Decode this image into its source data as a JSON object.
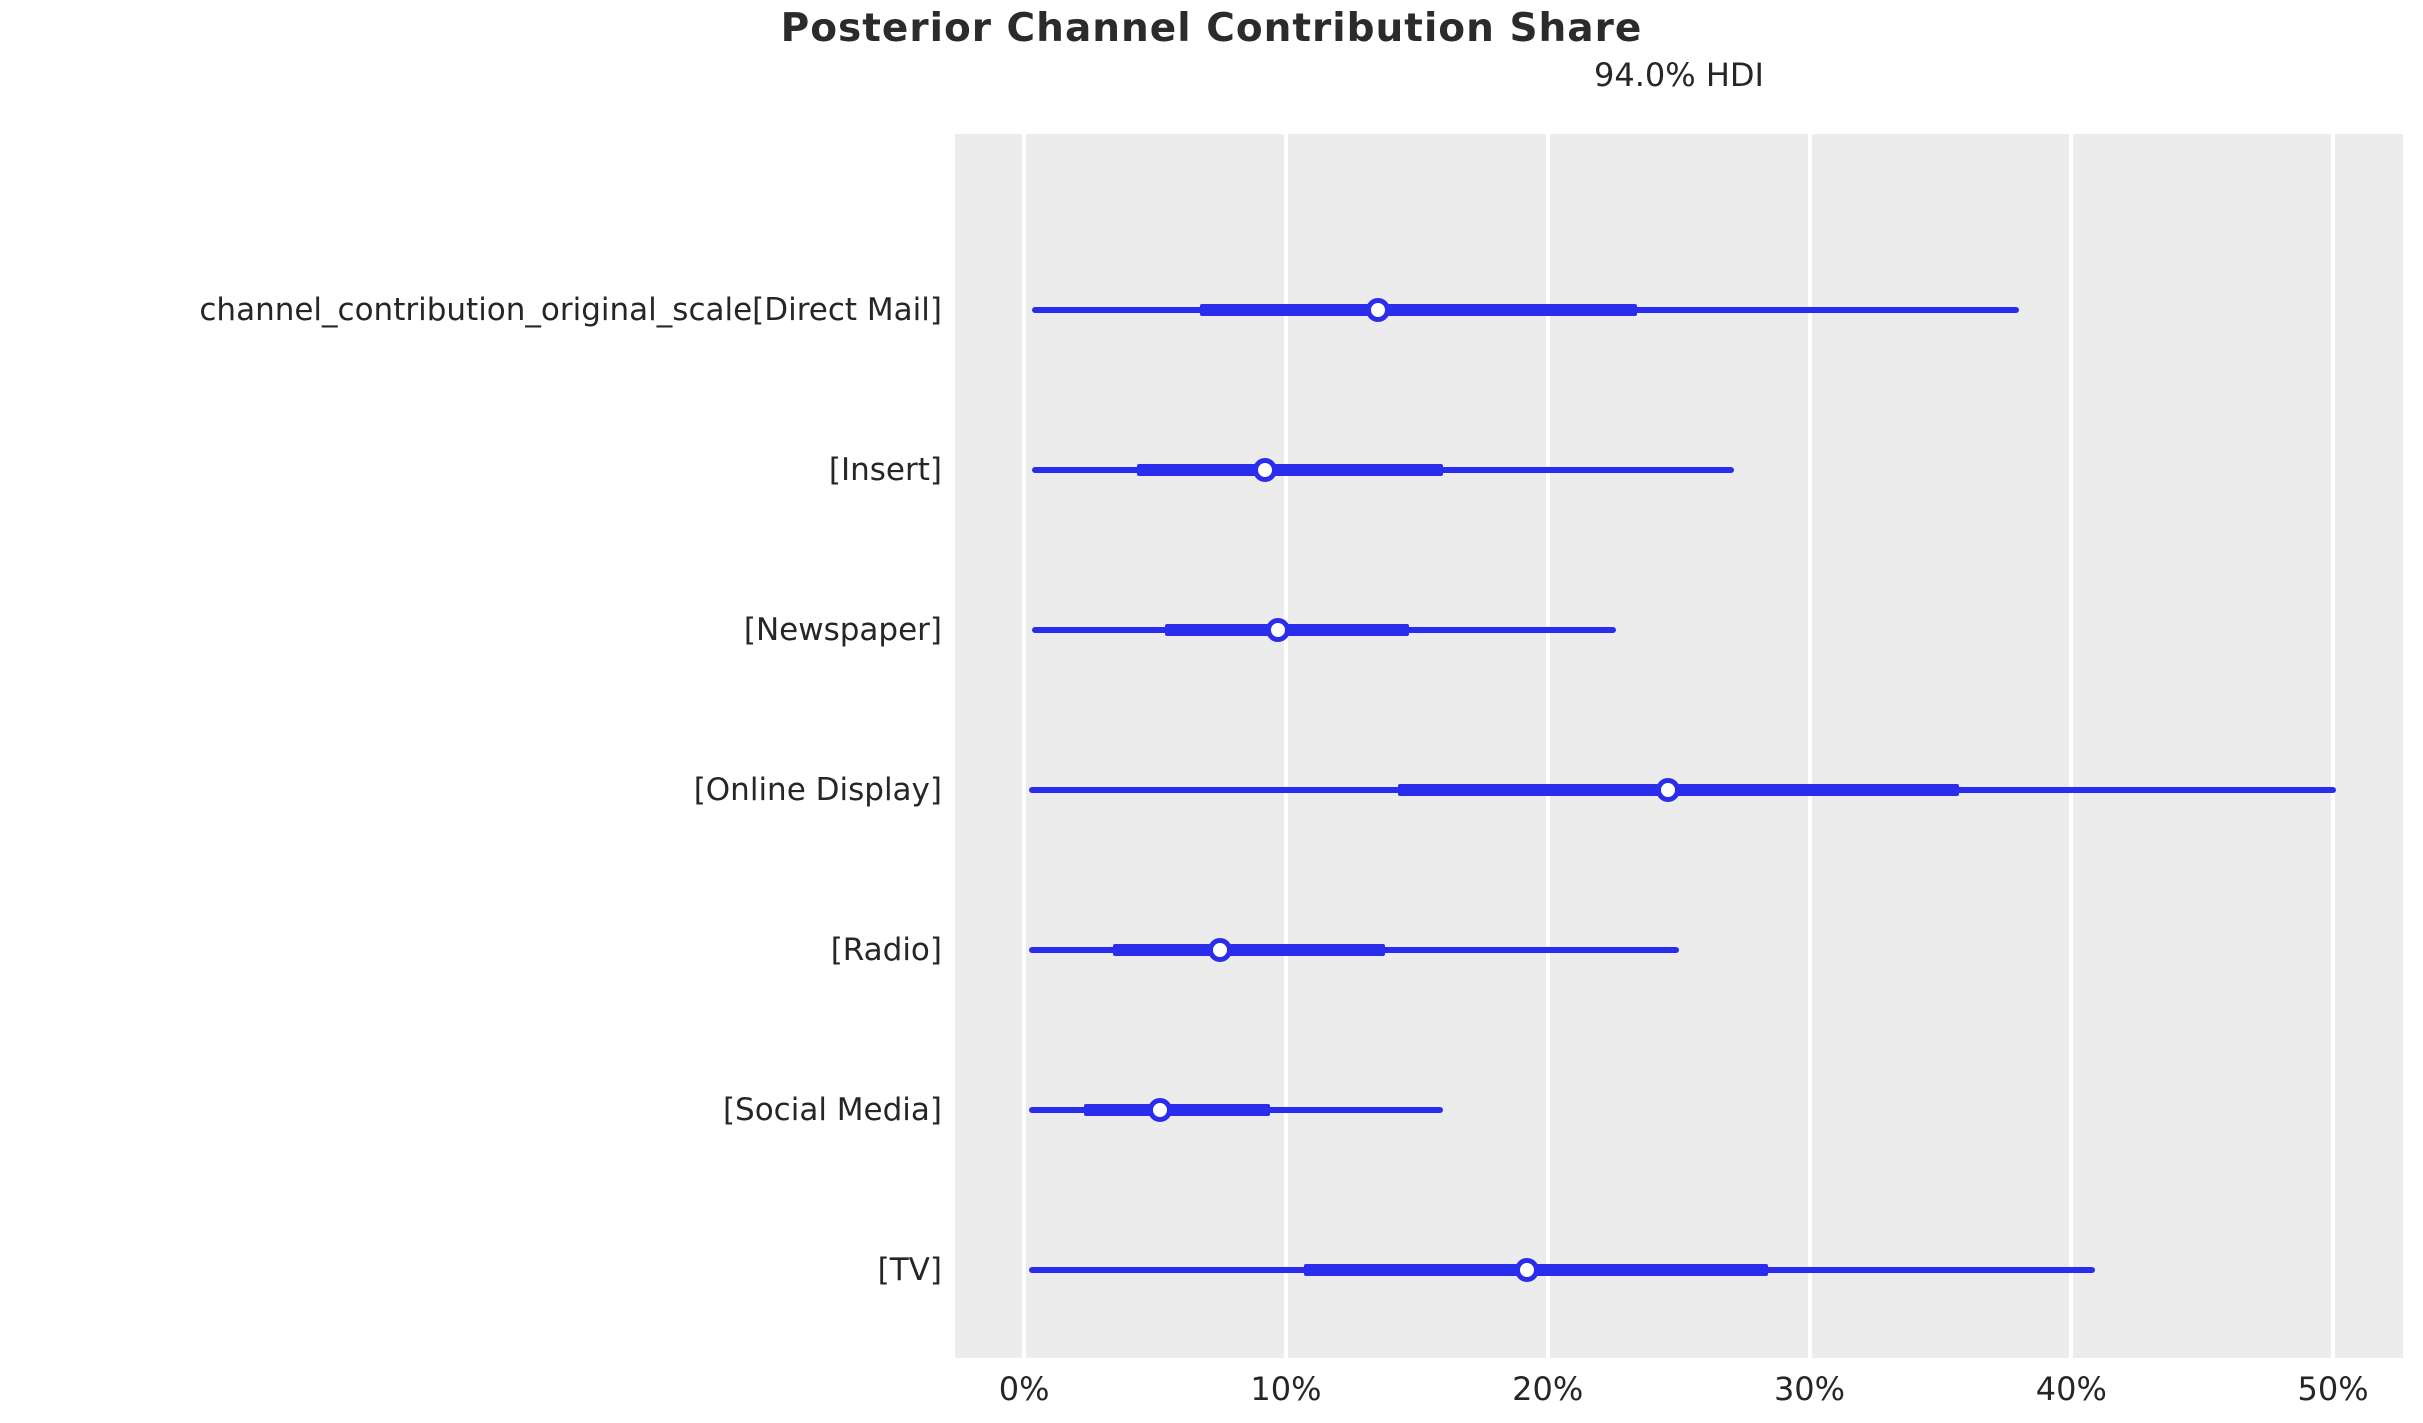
{
  "title": "Posterior Channel Contribution Share",
  "subtitle": "94.0% HDI",
  "colors": {
    "line": "#2a2eec",
    "plot_background": "#ececec",
    "gridline": "#ffffff",
    "text": "#262626",
    "title_text": "#2b2b2b",
    "marker_fill": "#ffffff"
  },
  "chart_data": {
    "type": "forest",
    "title": "Posterior Channel Contribution Share",
    "subtitle": "94.0% HDI",
    "hdi_probability": "94.0%",
    "unit": "percent",
    "x_axis": {
      "tick_labels": [
        "0%",
        "10%",
        "20%",
        "30%",
        "40%",
        "50%"
      ],
      "tick_values": [
        0,
        10,
        20,
        30,
        40,
        50
      ],
      "value_range": [
        -2.64,
        52.67
      ],
      "grid": "on"
    },
    "rows": [
      {
        "label": "channel_contribution_original_scale[Direct Mail]",
        "hdi_low": 0.3,
        "q25": 6.7,
        "median": 13.5,
        "q75": 23.4,
        "hdi_high": 38.0
      },
      {
        "label": "[Insert]",
        "hdi_low": 0.3,
        "q25": 4.3,
        "median": 9.2,
        "q75": 16.0,
        "hdi_high": 27.1
      },
      {
        "label": "[Newspaper]",
        "hdi_low": 0.3,
        "q25": 5.4,
        "median": 9.7,
        "q75": 14.7,
        "hdi_high": 22.6
      },
      {
        "label": "[Online Display]",
        "hdi_low": 0.2,
        "q25": 14.3,
        "median": 24.6,
        "q75": 35.7,
        "hdi_high": 50.1
      },
      {
        "label": "[Radio]",
        "hdi_low": 0.2,
        "q25": 3.4,
        "median": 7.5,
        "q75": 13.8,
        "hdi_high": 25.0
      },
      {
        "label": "[Social Media]",
        "hdi_low": 0.2,
        "q25": 2.3,
        "median": 5.2,
        "q75": 9.4,
        "hdi_high": 16.0
      },
      {
        "label": "[TV]",
        "hdi_low": 0.2,
        "q25": 10.7,
        "median": 19.2,
        "q75": 28.4,
        "hdi_high": 40.9
      }
    ]
  }
}
